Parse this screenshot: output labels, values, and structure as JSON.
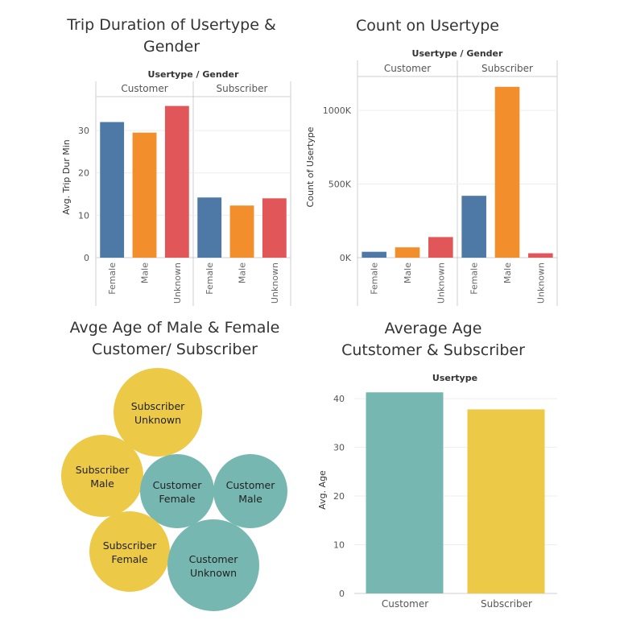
{
  "colors": {
    "female": "#4e79a7",
    "male": "#f28e2b",
    "unknown": "#e15759",
    "teal": "#76b7b2",
    "yellow": "#edc948"
  },
  "chart_data": [
    {
      "id": "trip-duration",
      "type": "bar",
      "title_lines": [
        "Trip Duration of Usertype &",
        "Gender"
      ],
      "header": "Usertype / Gender",
      "ylabel": "Avg. Trip Dur Min",
      "ylim": [
        0,
        38
      ],
      "yticks": [
        0,
        10,
        20,
        30
      ],
      "groups": [
        {
          "name": "Customer",
          "categories": [
            "Female",
            "Male",
            "Unknown"
          ],
          "values": [
            32,
            29.5,
            35.8
          ]
        },
        {
          "name": "Subscriber",
          "categories": [
            "Female",
            "Male",
            "Unknown"
          ],
          "values": [
            14.2,
            12.3,
            14
          ]
        }
      ]
    },
    {
      "id": "count-usertype",
      "type": "bar",
      "title_lines": [
        "Count on Usertype"
      ],
      "header": "Usertype / Gender",
      "ylabel": "Count of Usertype",
      "ylim": [
        0,
        1230000
      ],
      "yticks": [
        0,
        500000,
        1000000
      ],
      "ytick_labels": [
        "0K",
        "500K",
        "1000K"
      ],
      "groups": [
        {
          "name": "Customer",
          "categories": [
            "Female",
            "Male",
            "Unknown"
          ],
          "values": [
            40000,
            70000,
            140000
          ]
        },
        {
          "name": "Subscriber",
          "categories": [
            "Female",
            "Male",
            "Unknown"
          ],
          "values": [
            420000,
            1160000,
            30000
          ]
        }
      ]
    },
    {
      "id": "avg-age-bubbles",
      "type": "bubble",
      "title_lines": [
        "Avge Age of Male & Female",
        "Customer/ Subscriber"
      ],
      "bubbles": [
        {
          "line1": "Subscriber",
          "line2": "Unknown",
          "usertype": "Subscriber"
        },
        {
          "line1": "Subscriber",
          "line2": "Male",
          "usertype": "Subscriber"
        },
        {
          "line1": "Customer",
          "line2": "Female",
          "usertype": "Customer"
        },
        {
          "line1": "Customer",
          "line2": "Male",
          "usertype": "Customer"
        },
        {
          "line1": "Subscriber",
          "line2": "Female",
          "usertype": "Subscriber"
        },
        {
          "line1": "Customer",
          "line2": "Unknown",
          "usertype": "Customer"
        }
      ]
    },
    {
      "id": "average-age",
      "type": "bar",
      "title_lines": [
        "Average Age",
        "Cutstomer & Subscriber"
      ],
      "header": "Usertype",
      "ylabel": "Avg. Age",
      "ylim": [
        0,
        42.5
      ],
      "yticks": [
        0,
        10,
        20,
        30,
        40
      ],
      "categories": [
        "Customer",
        "Subscriber"
      ],
      "values": [
        41.3,
        37.8
      ]
    }
  ]
}
